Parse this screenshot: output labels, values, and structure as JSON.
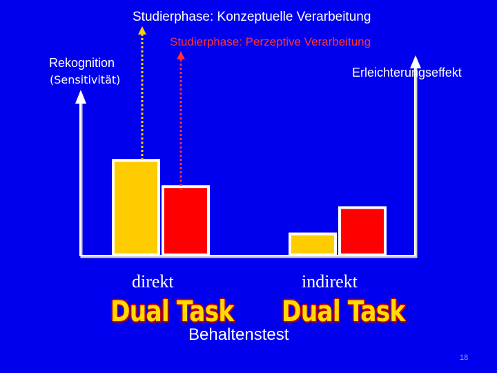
{
  "phases": {
    "conceptual": "Studierphase: Konzeptuelle Verarbeitung",
    "perceptual": "Studierphase: Perzeptive Verarbeitung"
  },
  "axes": {
    "left_label": "Rekognition",
    "left_sublabel": "(Sensitivität)",
    "right_label": "Erleichterungseffekt"
  },
  "categories": {
    "direct": "direkt",
    "indirect": "indirekt"
  },
  "dual_task_label": "Dual Task",
  "retention_test_label": "Behaltenstest",
  "page_number": "18",
  "colors": {
    "background": "#0000ee",
    "conceptual_bar": "#ffcc00",
    "perceptual_bar": "#ff0000",
    "axis": "#ffffff"
  },
  "chart_data": {
    "type": "bar",
    "categories": [
      "direkt",
      "indirekt"
    ],
    "series": [
      {
        "values": [
          0.72,
          0.16
        ]
      },
      {
        "values": [
          0.52,
          0.36
        ]
      }
    ]
  }
}
